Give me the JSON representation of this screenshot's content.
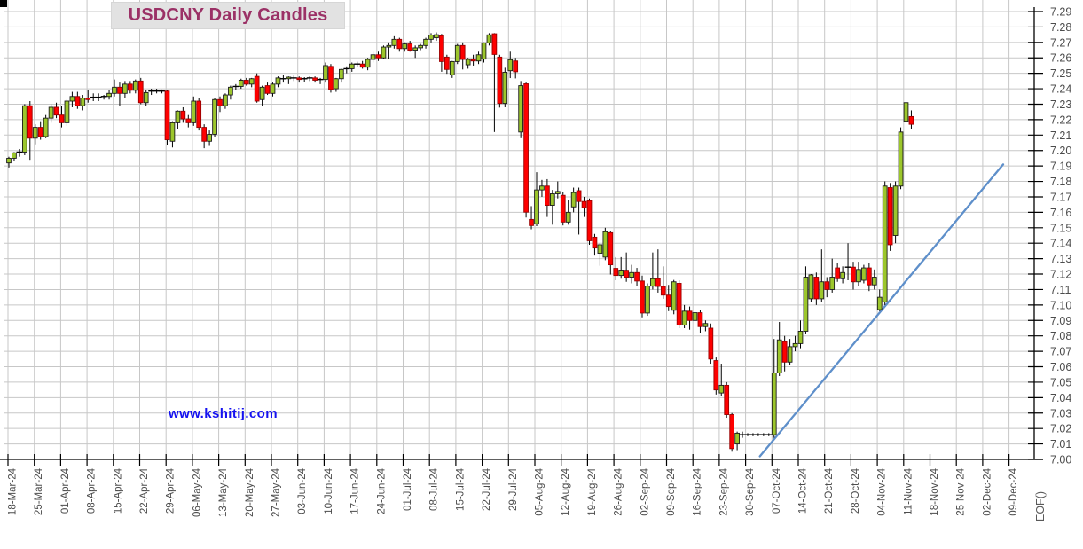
{
  "title": "USDCNY Daily Candles",
  "watermark": "www.kshitij.com",
  "chart_data": {
    "type": "candlestick",
    "instrument": "USDCNY",
    "interval": "Daily",
    "y_axis": {
      "min": 7.0,
      "max": 7.29,
      "step": 0.01,
      "labels": [
        "7.00",
        "7.01",
        "7.02",
        "7.03",
        "7.04",
        "7.05",
        "7.06",
        "7.07",
        "7.08",
        "7.09",
        "7.10",
        "7.11",
        "7.12",
        "7.13",
        "7.14",
        "7.15",
        "7.16",
        "7.17",
        "7.18",
        "7.19",
        "7.20",
        "7.21",
        "7.22",
        "7.23",
        "7.24",
        "7.25",
        "7.26",
        "7.27",
        "7.28",
        "7.29"
      ]
    },
    "x_labels": [
      "18-Mar-24",
      "25-Mar-24",
      "01-Apr-24",
      "08-Apr-24",
      "15-Apr-24",
      "22-Apr-24",
      "29-Apr-24",
      "06-May-24",
      "13-May-24",
      "20-May-24",
      "27-May-24",
      "03-Jun-24",
      "10-Jun-24",
      "17-Jun-24",
      "24-Jun-24",
      "01-Jul-24",
      "08-Jul-24",
      "15-Jul-24",
      "22-Jul-24",
      "29-Jul-24",
      "05-Aug-24",
      "12-Aug-24",
      "19-Aug-24",
      "26-Aug-24",
      "02-Sep-24",
      "09-Sep-24",
      "16-Sep-24",
      "23-Sep-24",
      "30-Sep-24",
      "07-Oct-24",
      "14-Oct-24",
      "21-Oct-24",
      "28-Oct-24",
      "04-Nov-24",
      "11-Nov-24",
      "18-Nov-24",
      "25-Nov-24",
      "02-Dec-24",
      "09-Dec-24"
    ],
    "x_axis_end_label": "EOF()",
    "candles_per_week": 5,
    "grid": true,
    "legend": false,
    "colors": {
      "up_fill": "#9cc62c",
      "up_border": "#1c1c1c",
      "down_fill": "#fe0000",
      "down_border": "#9a0000",
      "wick": "#000000",
      "grid": "#c7c7c7",
      "axis": "#000000",
      "label": "#4c4c4c",
      "trendline": "#5e8fca",
      "title_text": "#9b3166",
      "title_bg": "#e2e2e2",
      "watermark_text": "#1512f0"
    },
    "trendline": {
      "start": {
        "candle_index": 142.3,
        "price": 7.002
      },
      "end": {
        "candle_index": 188.4,
        "price": 7.191
      }
    },
    "ohlc": [
      [
        7.192,
        7.196,
        7.189,
        7.195
      ],
      [
        7.195,
        7.199,
        7.193,
        7.1985
      ],
      [
        7.1985,
        7.201,
        7.196,
        7.199
      ],
      [
        7.199,
        7.23,
        7.197,
        7.229
      ],
      [
        7.229,
        7.232,
        7.194,
        7.208
      ],
      [
        7.208,
        7.217,
        7.204,
        7.215
      ],
      [
        7.215,
        7.219,
        7.207,
        7.209
      ],
      [
        7.209,
        7.223,
        7.208,
        7.221
      ],
      [
        7.221,
        7.23,
        7.218,
        7.228
      ],
      [
        7.228,
        7.231,
        7.221,
        7.223
      ],
      [
        7.223,
        7.229,
        7.215,
        7.218
      ],
      [
        7.218,
        7.233,
        7.216,
        7.232
      ],
      [
        7.232,
        7.238,
        7.228,
        7.235
      ],
      [
        7.235,
        7.238,
        7.227,
        7.229
      ],
      [
        7.229,
        7.236,
        7.226,
        7.234
      ],
      [
        7.234,
        7.239,
        7.231,
        7.233
      ],
      [
        7.234,
        7.237,
        7.232,
        7.2345
      ],
      [
        7.2345,
        7.237,
        7.232,
        7.2345
      ],
      [
        7.2345,
        7.236,
        7.233,
        7.235
      ],
      [
        7.235,
        7.239,
        7.233,
        7.237
      ],
      [
        7.237,
        7.246,
        7.235,
        7.241
      ],
      [
        7.241,
        7.244,
        7.229,
        7.237
      ],
      [
        7.237,
        7.245,
        7.234,
        7.243
      ],
      [
        7.243,
        7.245,
        7.237,
        7.239
      ],
      [
        7.239,
        7.246,
        7.237,
        7.245
      ],
      [
        7.245,
        7.247,
        7.23,
        7.231
      ],
      [
        7.231,
        7.239,
        7.229,
        7.2375
      ],
      [
        7.238,
        7.24,
        7.236,
        7.2385
      ],
      [
        7.2385,
        7.24,
        7.237,
        7.2385
      ],
      [
        7.2385,
        7.2395,
        7.237,
        7.2385
      ],
      [
        7.2385,
        7.239,
        7.2035,
        7.207
      ],
      [
        7.206,
        7.219,
        7.202,
        7.218
      ],
      [
        7.218,
        7.226,
        7.214,
        7.2255
      ],
      [
        7.2255,
        7.228,
        7.218,
        7.2205
      ],
      [
        7.2205,
        7.223,
        7.215,
        7.218
      ],
      [
        7.218,
        7.235,
        7.216,
        7.232
      ],
      [
        7.232,
        7.234,
        7.213,
        7.215
      ],
      [
        7.215,
        7.217,
        7.2015,
        7.206
      ],
      [
        7.206,
        7.213,
        7.203,
        7.2105
      ],
      [
        7.2105,
        7.234,
        7.209,
        7.233
      ],
      [
        7.233,
        7.235,
        7.225,
        7.229
      ],
      [
        7.229,
        7.237,
        7.227,
        7.236
      ],
      [
        7.236,
        7.242,
        7.233,
        7.241
      ],
      [
        7.2415,
        7.243,
        7.239,
        7.2415
      ],
      [
        7.2415,
        7.2465,
        7.24,
        7.2455
      ],
      [
        7.2455,
        7.247,
        7.242,
        7.243
      ],
      [
        7.243,
        7.247,
        7.241,
        7.2465
      ],
      [
        7.248,
        7.25,
        7.231,
        7.232
      ],
      [
        7.233,
        7.242,
        7.229,
        7.241
      ],
      [
        7.242,
        7.244,
        7.236,
        7.237
      ],
      [
        7.237,
        7.244,
        7.235,
        7.243
      ],
      [
        7.243,
        7.248,
        7.241,
        7.247
      ],
      [
        7.247,
        7.249,
        7.244,
        7.2465
      ],
      [
        7.2465,
        7.248,
        7.243,
        7.2475
      ],
      [
        7.2475,
        7.2485,
        7.245,
        7.247
      ],
      [
        7.247,
        7.248,
        7.244,
        7.246
      ],
      [
        7.246,
        7.2475,
        7.2445,
        7.2465
      ],
      [
        7.2465,
        7.248,
        7.245,
        7.247
      ],
      [
        7.247,
        7.248,
        7.244,
        7.2455
      ],
      [
        7.2455,
        7.247,
        7.243,
        7.246
      ],
      [
        7.246,
        7.257,
        7.244,
        7.255
      ],
      [
        7.2545,
        7.256,
        7.2375,
        7.2395
      ],
      [
        7.24,
        7.247,
        7.238,
        7.2465
      ],
      [
        7.2465,
        7.253,
        7.244,
        7.2525
      ],
      [
        7.253,
        7.2545,
        7.25,
        7.253
      ],
      [
        7.253,
        7.257,
        7.251,
        7.256
      ],
      [
        7.256,
        7.2575,
        7.254,
        7.256
      ],
      [
        7.256,
        7.258,
        7.253,
        7.254
      ],
      [
        7.254,
        7.26,
        7.252,
        7.259
      ],
      [
        7.259,
        7.264,
        7.257,
        7.262
      ],
      [
        7.262,
        7.264,
        7.258,
        7.26
      ],
      [
        7.26,
        7.268,
        7.259,
        7.267
      ],
      [
        7.267,
        7.27,
        7.259,
        7.268
      ],
      [
        7.268,
        7.274,
        7.266,
        7.272
      ],
      [
        7.272,
        7.273,
        7.264,
        7.266
      ],
      [
        7.266,
        7.27,
        7.264,
        7.269
      ],
      [
        7.269,
        7.271,
        7.264,
        7.265
      ],
      [
        7.265,
        7.268,
        7.26,
        7.2665
      ],
      [
        7.2665,
        7.269,
        7.265,
        7.268
      ],
      [
        7.268,
        7.273,
        7.266,
        7.272
      ],
      [
        7.272,
        7.276,
        7.27,
        7.2748
      ],
      [
        7.273,
        7.2765,
        7.271,
        7.275
      ],
      [
        7.2743,
        7.2755,
        7.251,
        7.2576
      ],
      [
        7.2605,
        7.262,
        7.2497,
        7.2525
      ],
      [
        7.249,
        7.258,
        7.247,
        7.2576
      ],
      [
        7.2576,
        7.269,
        7.256,
        7.268
      ],
      [
        7.268,
        7.27,
        7.2525,
        7.259
      ],
      [
        7.2555,
        7.26,
        7.253,
        7.259
      ],
      [
        7.259,
        7.262,
        7.255,
        7.258
      ],
      [
        7.258,
        7.264,
        7.256,
        7.262
      ],
      [
        7.2592,
        7.27,
        7.257,
        7.2697
      ],
      [
        7.2697,
        7.276,
        7.268,
        7.2749
      ],
      [
        7.2756,
        7.276,
        7.212,
        7.2622
      ],
      [
        7.2605,
        7.262,
        7.2278,
        7.2305
      ],
      [
        7.2305,
        7.2536,
        7.228,
        7.2507
      ],
      [
        7.2517,
        7.264,
        7.2469,
        7.2588
      ],
      [
        7.258,
        7.26,
        7.2467,
        7.251
      ],
      [
        7.212,
        7.245,
        7.208,
        7.242
      ],
      [
        7.2432,
        7.244,
        7.1566,
        7.1601
      ],
      [
        7.1554,
        7.164,
        7.149,
        7.1514
      ],
      [
        7.1526,
        7.186,
        7.151,
        7.1745
      ],
      [
        7.1745,
        7.181,
        7.17,
        7.177
      ],
      [
        7.177,
        7.1815,
        7.157,
        7.1645
      ],
      [
        7.1645,
        7.1745,
        7.152,
        7.172
      ],
      [
        7.172,
        7.18,
        7.169,
        7.1735
      ],
      [
        7.171,
        7.173,
        7.1515,
        7.1537
      ],
      [
        7.1537,
        7.168,
        7.152,
        7.16
      ],
      [
        7.1635,
        7.176,
        7.16,
        7.1728
      ],
      [
        7.174,
        7.176,
        7.1456,
        7.167
      ],
      [
        7.167,
        7.17,
        7.157,
        7.163
      ],
      [
        7.1675,
        7.169,
        7.139,
        7.1416
      ],
      [
        7.1439,
        7.146,
        7.132,
        7.1369
      ],
      [
        7.1335,
        7.14,
        7.1254,
        7.139
      ],
      [
        7.131,
        7.15,
        7.129,
        7.1474
      ],
      [
        7.1468,
        7.148,
        7.1197,
        7.126
      ],
      [
        7.1237,
        7.131,
        7.116,
        7.1191
      ],
      [
        7.1191,
        7.131,
        7.117,
        7.1226
      ],
      [
        7.1225,
        7.134,
        7.115,
        7.1179
      ],
      [
        7.118,
        7.126,
        7.114,
        7.121
      ],
      [
        7.121,
        7.124,
        7.112,
        7.1155
      ],
      [
        7.1155,
        7.119,
        7.092,
        7.0948
      ],
      [
        7.0948,
        7.114,
        7.093,
        7.1122
      ],
      [
        7.1122,
        7.134,
        7.11,
        7.117
      ],
      [
        7.117,
        7.136,
        7.108,
        7.112
      ],
      [
        7.112,
        7.125,
        7.104,
        7.1064
      ],
      [
        7.1064,
        7.113,
        7.096,
        7.099
      ],
      [
        7.0966,
        7.1162,
        7.094,
        7.115
      ],
      [
        7.114,
        7.116,
        7.085,
        7.087
      ],
      [
        7.087,
        7.1,
        7.085,
        7.096
      ],
      [
        7.096,
        7.099,
        7.084,
        7.09
      ],
      [
        7.09,
        7.101,
        7.087,
        7.095
      ],
      [
        7.095,
        7.097,
        7.082,
        7.086
      ],
      [
        7.086,
        7.09,
        7.083,
        7.088
      ],
      [
        7.085,
        7.088,
        7.062,
        7.065
      ],
      [
        7.064,
        7.066,
        7.042,
        7.045
      ],
      [
        7.043,
        7.062,
        7.041,
        7.048
      ],
      [
        7.048,
        7.05,
        7.027,
        7.029
      ],
      [
        7.029,
        7.03,
        7.005,
        7.007
      ],
      [
        7.01,
        7.018,
        7.006,
        7.017
      ],
      [
        7.016,
        7.018,
        7.014,
        7.016
      ],
      [
        7.016,
        7.017,
        7.015,
        7.016
      ],
      [
        7.016,
        7.017,
        7.015,
        7.016
      ],
      [
        7.016,
        7.017,
        7.015,
        7.016
      ],
      [
        7.016,
        7.017,
        7.015,
        7.016
      ],
      [
        7.016,
        7.017,
        7.015,
        7.016
      ],
      [
        7.016,
        7.078,
        7.014,
        7.056
      ],
      [
        7.056,
        7.089,
        7.054,
        7.0774
      ],
      [
        7.0763,
        7.08,
        7.057,
        7.063
      ],
      [
        7.063,
        7.078,
        7.061,
        7.073
      ],
      [
        7.073,
        7.08,
        7.07,
        7.075
      ],
      [
        7.075,
        7.09,
        7.072,
        7.083
      ],
      [
        7.083,
        7.125,
        7.081,
        7.118
      ],
      [
        7.104,
        7.12,
        7.102,
        7.1195
      ],
      [
        7.118,
        7.121,
        7.1,
        7.104
      ],
      [
        7.104,
        7.136,
        7.102,
        7.115
      ],
      [
        7.115,
        7.118,
        7.105,
        7.11
      ],
      [
        7.11,
        7.13,
        7.108,
        7.118
      ],
      [
        7.124,
        7.127,
        7.115,
        7.117
      ],
      [
        7.117,
        7.125,
        7.114,
        7.121
      ],
      [
        7.125,
        7.14,
        7.116,
        7.1245
      ],
      [
        7.1245,
        7.128,
        7.11,
        7.115
      ],
      [
        7.115,
        7.128,
        7.112,
        7.123
      ],
      [
        7.116,
        7.126,
        7.114,
        7.124
      ],
      [
        7.124,
        7.127,
        7.109,
        7.113
      ],
      [
        7.113,
        7.123,
        7.11,
        7.118
      ],
      [
        7.097,
        7.11,
        7.096,
        7.105
      ],
      [
        7.102,
        7.18,
        7.1,
        7.177
      ],
      [
        7.176,
        7.179,
        7.135,
        7.139
      ],
      [
        7.145,
        7.18,
        7.14,
        7.177
      ],
      [
        7.177,
        7.215,
        7.175,
        7.212
      ],
      [
        7.219,
        7.24,
        7.216,
        7.231
      ],
      [
        7.222,
        7.226,
        7.214,
        7.217
      ]
    ]
  }
}
